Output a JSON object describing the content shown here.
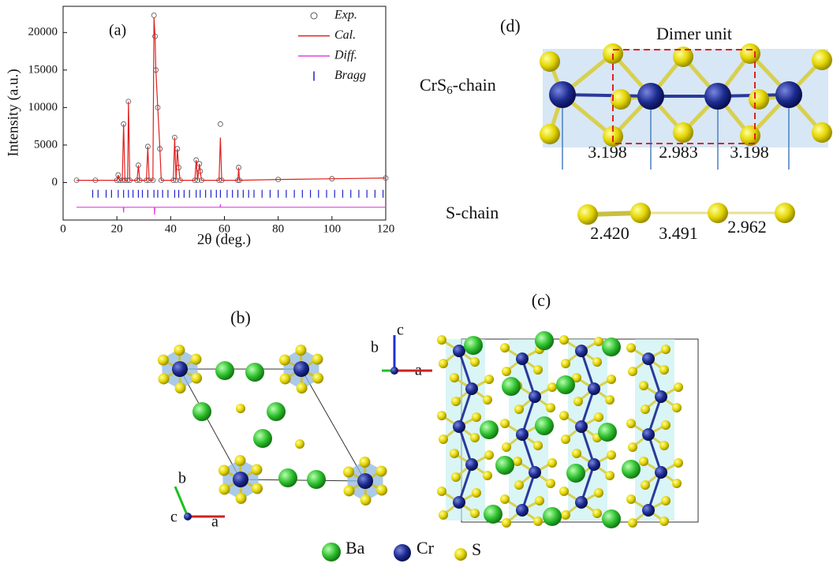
{
  "chart_data": {
    "type": "line",
    "panel_label": "(a)",
    "xlabel": "2θ (deg.)",
    "ylabel": "Intensity (a.u.)",
    "xlim": [
      0,
      120
    ],
    "xticks": [
      0,
      20,
      40,
      60,
      80,
      100,
      120
    ],
    "ylim": [
      -5000,
      23500
    ],
    "yticks": [
      0,
      5000,
      10000,
      15000,
      20000
    ],
    "legend": "upper right",
    "series": [
      {
        "name": "Exp.",
        "color": "#555555",
        "style": "circle",
        "x": [
          5,
          12,
          20,
          20.5,
          21,
          22,
          22.5,
          23,
          24,
          24.3,
          24.8,
          27.5,
          28,
          28.5,
          31,
          31.5,
          32,
          33.4,
          33.8,
          34.2,
          34.5,
          35.2,
          36,
          36.5,
          41,
          41.5,
          42,
          42.5,
          43,
          43.5,
          49,
          49.5,
          50,
          50.7,
          51,
          51.5,
          58,
          58.5,
          59,
          65,
          65.3,
          65.6,
          80,
          100,
          120
        ],
        "values": [
          300,
          300,
          300,
          1000,
          300,
          300,
          7800,
          300,
          300,
          10800,
          300,
          300,
          2300,
          300,
          300,
          4800,
          300,
          300,
          22300,
          19500,
          15000,
          10000,
          4500,
          300,
          300,
          6000,
          300,
          4500,
          2000,
          300,
          300,
          3000,
          300,
          2500,
          1500,
          300,
          300,
          7800,
          300,
          300,
          2000,
          300,
          400,
          500,
          600
        ]
      },
      {
        "name": "Cal.",
        "color": "#e02020",
        "style": "line",
        "x": [
          5,
          12,
          20,
          20.5,
          21,
          22,
          22.5,
          23,
          24,
          24.3,
          24.8,
          27.5,
          28,
          28.5,
          31,
          31.5,
          32,
          33.4,
          33.8,
          34.2,
          34.5,
          35.2,
          36,
          36.5,
          41,
          41.5,
          42,
          42.5,
          43,
          43.5,
          49,
          49.5,
          50,
          50.7,
          51,
          51.5,
          58,
          58.5,
          59,
          65,
          65.3,
          65.6,
          80,
          100,
          120
        ],
        "values": [
          300,
          300,
          300,
          1000,
          300,
          300,
          7800,
          300,
          300,
          10800,
          300,
          300,
          2300,
          300,
          300,
          4800,
          300,
          300,
          22000,
          19500,
          15000,
          10000,
          4500,
          300,
          300,
          6000,
          300,
          4500,
          2000,
          300,
          300,
          3000,
          300,
          2500,
          1500,
          300,
          300,
          6000,
          300,
          300,
          2000,
          300,
          400,
          500,
          600
        ]
      },
      {
        "name": "Diff.",
        "color": "#e040e0",
        "style": "line",
        "x": [
          5,
          22.4,
          22.5,
          22.6,
          33.9,
          34,
          34.1,
          58.4,
          58.5,
          58.6,
          120
        ],
        "values": [
          -3300,
          -3300,
          -4000,
          -3300,
          -3300,
          -4300,
          -3300,
          -3300,
          -2900,
          -3300,
          -3300
        ]
      },
      {
        "name": "Bragg",
        "color": "#2020d0",
        "style": "tick",
        "x": [
          11,
          13,
          16,
          18,
          20.5,
          22.5,
          24.3,
          26,
          28,
          29.5,
          31.5,
          33.8,
          35.2,
          37,
          39,
          41.5,
          43,
          45,
          47,
          49.5,
          51,
          53,
          55,
          57,
          58.5,
          61,
          63,
          65,
          67,
          69,
          71,
          74,
          77,
          80,
          83,
          86,
          89,
          92,
          95,
          98,
          101,
          104,
          107,
          110,
          113,
          116,
          119
        ],
        "values": [
          -1500,
          -1500,
          -1500,
          -1500,
          -1500,
          -1500,
          -1500,
          -1500,
          -1500,
          -1500,
          -1500,
          -1500,
          -1500,
          -1500,
          -1500,
          -1500,
          -1500,
          -1500,
          -1500,
          -1500,
          -1500,
          -1500,
          -1500,
          -1500,
          -1500,
          -1500,
          -1500,
          -1500,
          -1500,
          -1500,
          -1500,
          -1500,
          -1500,
          -1500,
          -1500,
          -1500,
          -1500,
          -1500,
          -1500,
          -1500,
          -1500,
          -1500,
          -1500,
          -1500,
          -1500,
          -1500,
          -1500
        ]
      }
    ]
  },
  "panel_b": {
    "label": "(b)",
    "axes": [
      "a",
      "b",
      "c"
    ]
  },
  "panel_c": {
    "label": "(c)",
    "axes": [
      "a",
      "b",
      "c"
    ]
  },
  "panel_d": {
    "label": "(d)",
    "title": "Dimer unit",
    "chain_label": {
      "main": "CrS",
      "sub": "6",
      "tail": "-chain"
    },
    "chain_distances": [
      "3.198",
      "2.983",
      "3.198"
    ],
    "s_chain_label": "S-chain",
    "s_chain_distances": [
      "2.420",
      "3.491",
      "2.962"
    ]
  },
  "legend": [
    "Ba",
    "Cr",
    "S"
  ]
}
